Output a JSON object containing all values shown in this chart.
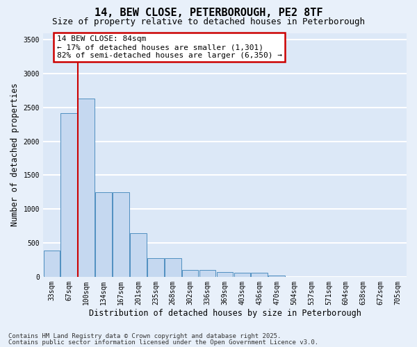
{
  "title": "14, BEW CLOSE, PETERBOROUGH, PE2 8TF",
  "subtitle": "Size of property relative to detached houses in Peterborough",
  "xlabel": "Distribution of detached houses by size in Peterborough",
  "ylabel": "Number of detached properties",
  "categories": [
    "33sqm",
    "67sqm",
    "100sqm",
    "134sqm",
    "167sqm",
    "201sqm",
    "235sqm",
    "268sqm",
    "302sqm",
    "336sqm",
    "369sqm",
    "403sqm",
    "436sqm",
    "470sqm",
    "504sqm",
    "537sqm",
    "571sqm",
    "604sqm",
    "638sqm",
    "672sqm",
    "705sqm"
  ],
  "values": [
    390,
    2420,
    2630,
    1250,
    1250,
    640,
    280,
    280,
    100,
    100,
    70,
    55,
    55,
    20,
    0,
    0,
    0,
    0,
    0,
    0,
    0
  ],
  "bar_color": "#c5d8f0",
  "bar_edge_color": "#4f8fc0",
  "plot_bg_color": "#dce8f7",
  "fig_bg_color": "#e8f0fa",
  "grid_color": "#ffffff",
  "vline_color": "#cc0000",
  "vline_x": 1.5,
  "annotation_text": "14 BEW CLOSE: 84sqm\n← 17% of detached houses are smaller (1,301)\n82% of semi-detached houses are larger (6,350) →",
  "annotation_box_edgecolor": "#cc0000",
  "ylim": [
    0,
    3600
  ],
  "yticks": [
    0,
    500,
    1000,
    1500,
    2000,
    2500,
    3000,
    3500
  ],
  "footnote_line1": "Contains HM Land Registry data © Crown copyright and database right 2025.",
  "footnote_line2": "Contains public sector information licensed under the Open Government Licence v3.0.",
  "title_fontsize": 11,
  "subtitle_fontsize": 9,
  "xlabel_fontsize": 8.5,
  "ylabel_fontsize": 8.5,
  "tick_fontsize": 7,
  "annotation_fontsize": 8,
  "footnote_fontsize": 6.5
}
